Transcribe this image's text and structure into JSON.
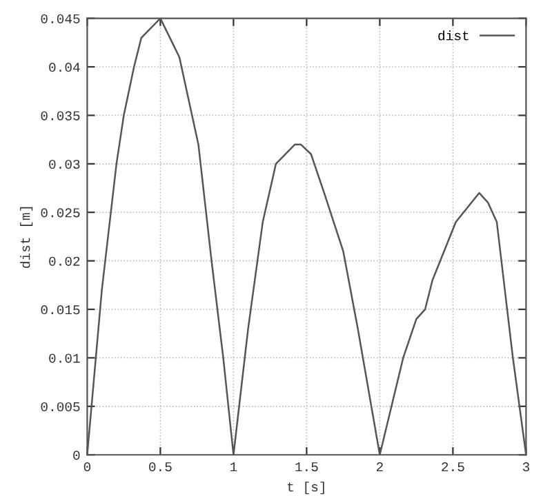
{
  "chart_data": {
    "type": "line",
    "xlabel": "t [s]",
    "ylabel": "dist [m]",
    "xlim": [
      0,
      3
    ],
    "ylim": [
      0,
      0.045
    ],
    "xticks": [
      0,
      0.5,
      1,
      1.5,
      2,
      2.5,
      3
    ],
    "yticks": [
      0,
      0.005,
      0.01,
      0.015,
      0.02,
      0.025,
      0.03,
      0.035,
      0.04,
      0.045
    ],
    "grid": true,
    "legend": "top right",
    "marker": "none",
    "line_style": "solid",
    "series": [
      {
        "name": "dist",
        "color": "#555555",
        "x": [
          0,
          0.1,
          0.2,
          0.25,
          0.32,
          0.37,
          0.5,
          0.63,
          0.76,
          0.85,
          0.93,
          1.0,
          1.1,
          1.2,
          1.29,
          1.42,
          1.46,
          1.53,
          1.62,
          1.75,
          1.85,
          2.0,
          2.08,
          2.16,
          2.25,
          2.31,
          2.36,
          2.52,
          2.68,
          2.74,
          2.8,
          2.91,
          3.0
        ],
        "values": [
          0,
          0.017,
          0.03,
          0.035,
          0.04,
          0.043,
          0.045,
          0.041,
          0.032,
          0.02,
          0.01,
          0,
          0.013,
          0.024,
          0.03,
          0.032,
          0.032,
          0.031,
          0.027,
          0.021,
          0.013,
          0,
          0.005,
          0.01,
          0.014,
          0.015,
          0.018,
          0.024,
          0.027,
          0.026,
          0.024,
          0.01,
          0
        ]
      }
    ]
  }
}
